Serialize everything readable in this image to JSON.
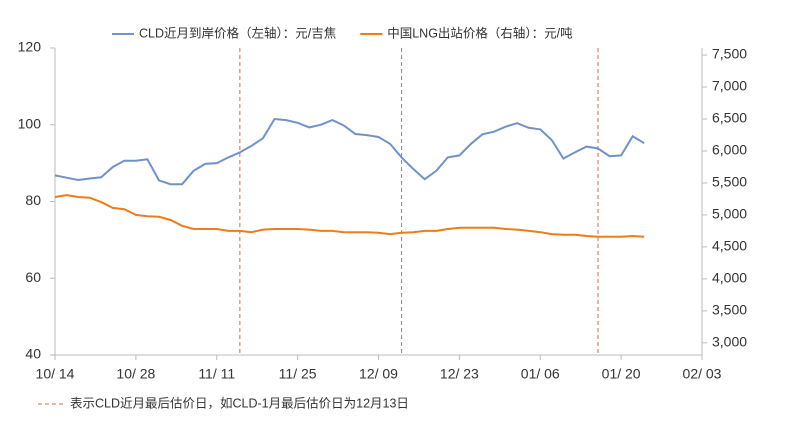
{
  "chart_data": {
    "type": "line",
    "categories": [
      "10/ 14",
      null,
      null,
      null,
      null,
      null,
      null,
      "10/ 28",
      null,
      null,
      null,
      null,
      null,
      null,
      "11/ 11",
      null,
      null,
      null,
      null,
      null,
      null,
      "11/ 25",
      null,
      null,
      null,
      null,
      null,
      null,
      "12/ 09",
      null,
      null,
      null,
      null,
      null,
      null,
      "12/ 23",
      null,
      null,
      null,
      null,
      null,
      null,
      "01/ 06",
      null,
      null,
      null,
      null,
      null,
      null,
      "01/ 20",
      null,
      null,
      null,
      null,
      null,
      null,
      "02/ 03"
    ],
    "series": [
      {
        "name": "CLD近月到岸价格（左轴）：元/吉焦",
        "color": "#6f92cc",
        "axis": "y",
        "values": [
          86.8,
          86.2,
          85.6,
          86,
          86.3,
          89,
          90.6,
          90.6,
          91,
          85.5,
          84.5,
          84.5,
          88,
          89.8,
          90,
          91.5,
          92.8,
          94.5,
          96.5,
          101.5,
          101.2,
          100.5,
          99.3,
          100,
          101.2,
          99.8,
          97.6,
          97.3,
          96.8,
          95,
          91.5,
          88.5,
          85.8,
          88,
          91.5,
          92,
          95,
          97.5,
          98.2,
          99.5,
          100.4,
          99.2,
          98.8,
          96,
          91.2,
          92.8,
          94.3,
          93.8,
          91.8,
          92,
          97,
          95.2,
          null,
          null,
          null,
          null,
          null
        ]
      },
      {
        "name": "中国LNG出站价格（右轴）：元/吨",
        "color": "#f07b19",
        "axis": "y2",
        "values": [
          5280,
          5310,
          5280,
          5270,
          5200,
          5110,
          5090,
          5000,
          4980,
          4970,
          4920,
          4830,
          4780,
          4780,
          4780,
          4750,
          4750,
          4730,
          4770,
          4780,
          4780,
          4780,
          4770,
          4750,
          4750,
          4730,
          4730,
          4730,
          4720,
          4700,
          4720,
          4730,
          4750,
          4750,
          4780,
          4800,
          4800,
          4800,
          4800,
          4780,
          4770,
          4750,
          4730,
          4700,
          4690,
          4690,
          4670,
          4660,
          4660,
          4660,
          4670,
          4660,
          null,
          null,
          null,
          null,
          null
        ]
      }
    ],
    "ylim": [
      40,
      120
    ],
    "yticks": [
      40,
      60,
      80,
      100,
      120
    ],
    "y2lim": [
      2810,
      7610
    ],
    "y2ticks": [
      {
        "value": 3000,
        "label": "3,000"
      },
      {
        "value": 3500,
        "label": "3,500"
      },
      {
        "value": 4000,
        "label": "4,000"
      },
      {
        "value": 4500,
        "label": "4,500"
      },
      {
        "value": 5000,
        "label": "5,000"
      },
      {
        "value": 5500,
        "label": "5,500"
      },
      {
        "value": 6000,
        "label": "6,000"
      },
      {
        "value": 6500,
        "label": "6,500"
      },
      {
        "value": 7000,
        "label": "7,000"
      },
      {
        "value": 7500,
        "label": "7,500"
      }
    ],
    "markers": [
      16,
      30,
      47
    ],
    "marker_note": "表示CLD近月最后估价日，如CLD-1月最后估价日为12月13日",
    "marker_color": "#c8704a",
    "grid": false
  }
}
